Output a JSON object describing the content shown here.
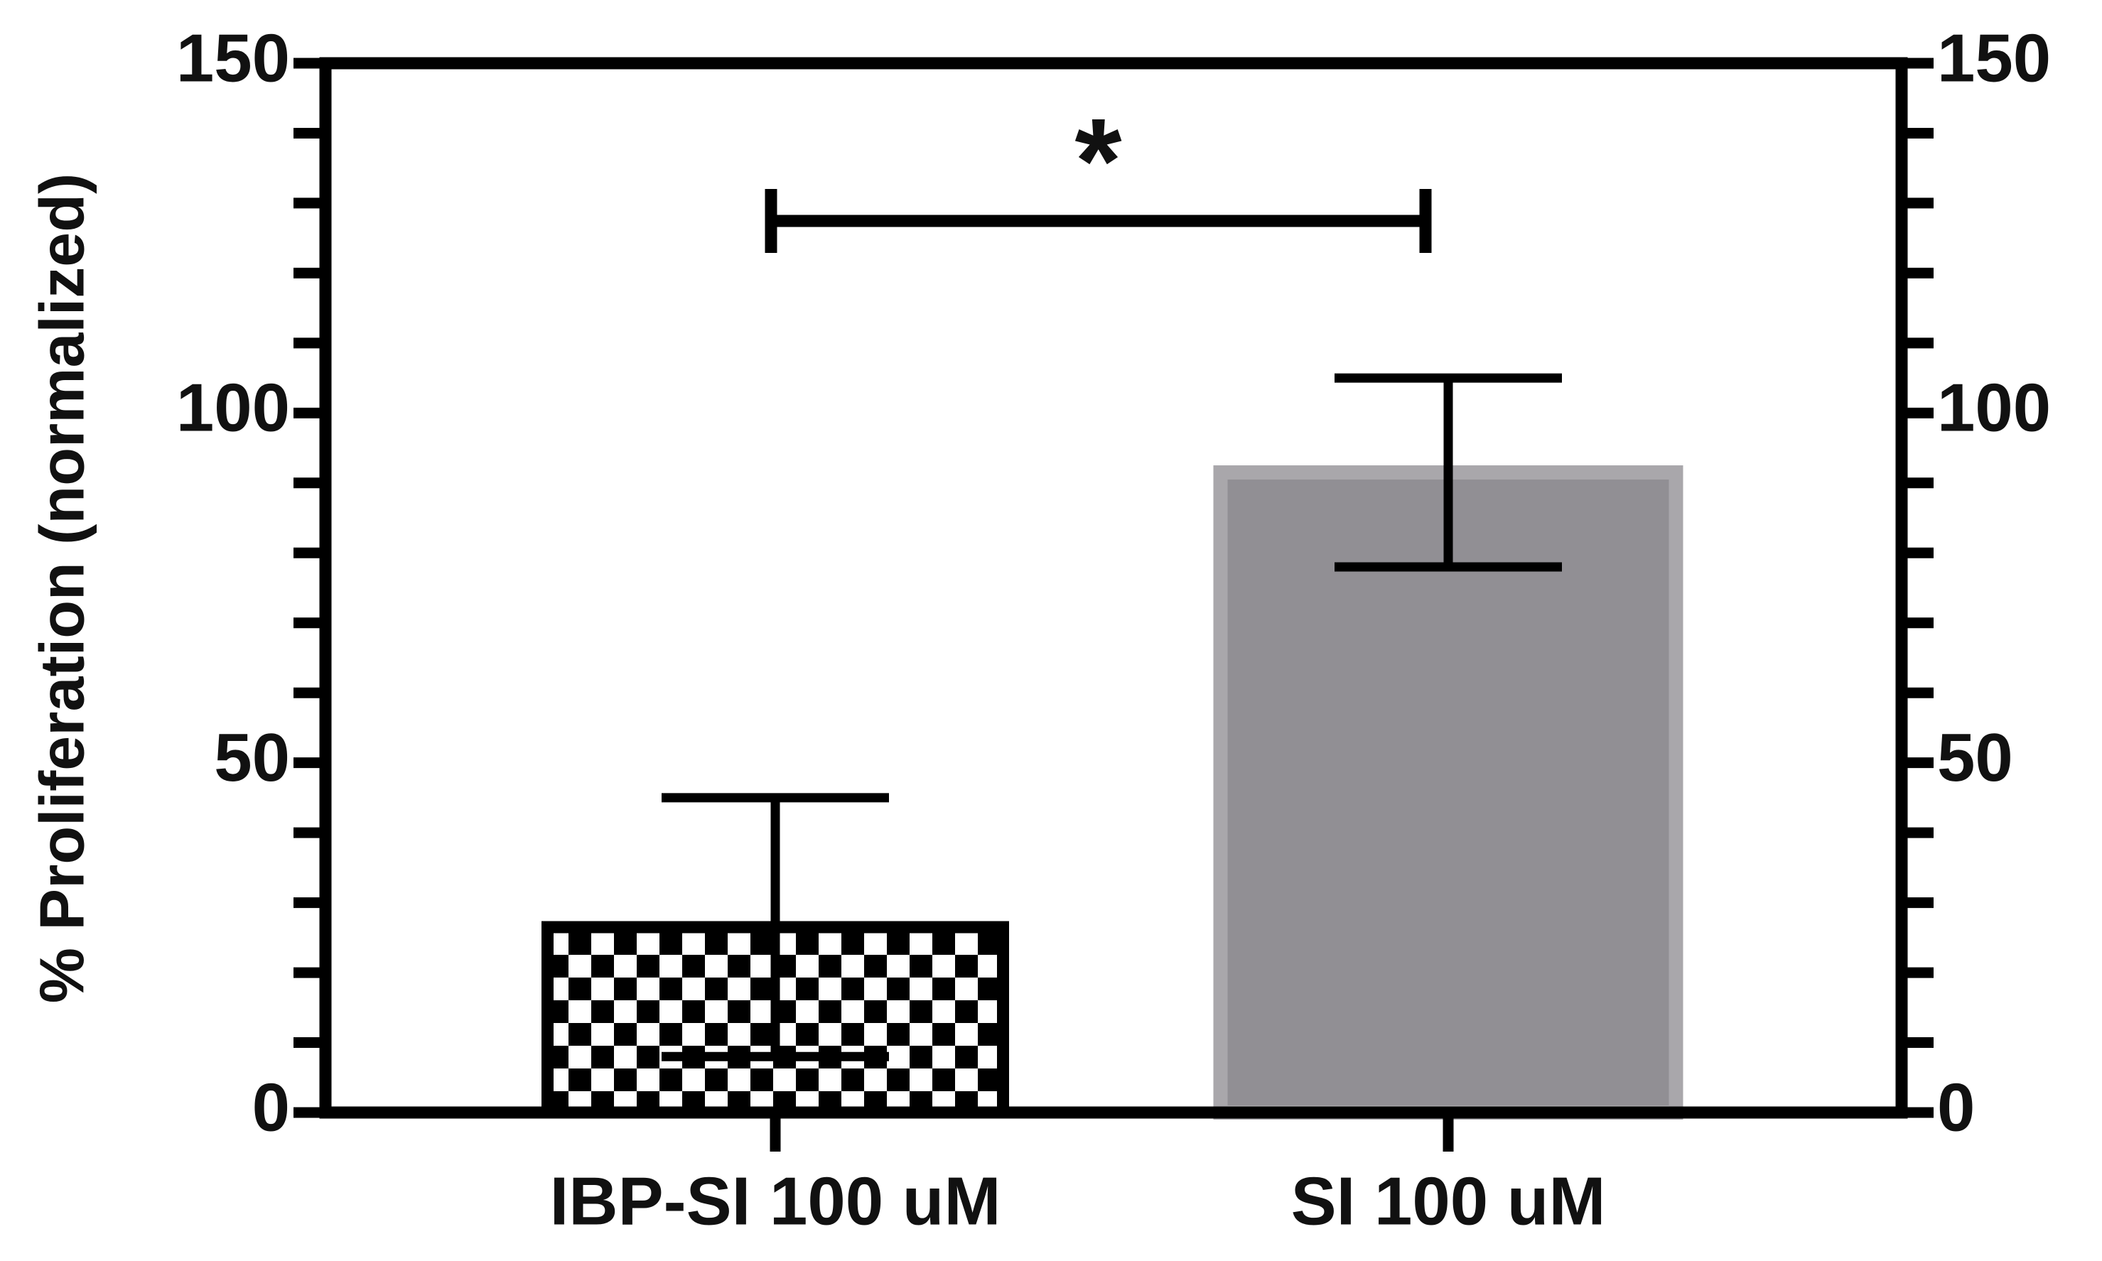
{
  "chart_data": {
    "type": "bar",
    "ylabel": "% Proliferation (normalized)",
    "categories": [
      "IBP-SI 100 uM",
      "SI 100 uM"
    ],
    "values": [
      26.5,
      91.5
    ],
    "errors": [
      18.5,
      13.5
    ],
    "colors": [
      "#000000",
      "#918f94"
    ],
    "hatches": [
      "checkerboard",
      null
    ],
    "ylim": [
      0,
      150
    ],
    "yticks": [
      0,
      50,
      100,
      150
    ],
    "yminorticks": [
      10,
      20,
      30,
      40,
      60,
      70,
      80,
      90,
      110,
      120,
      130,
      140
    ],
    "y2lim": [
      0,
      150
    ],
    "y2ticks": [
      0,
      50,
      100,
      150
    ],
    "annotation": "*"
  }
}
